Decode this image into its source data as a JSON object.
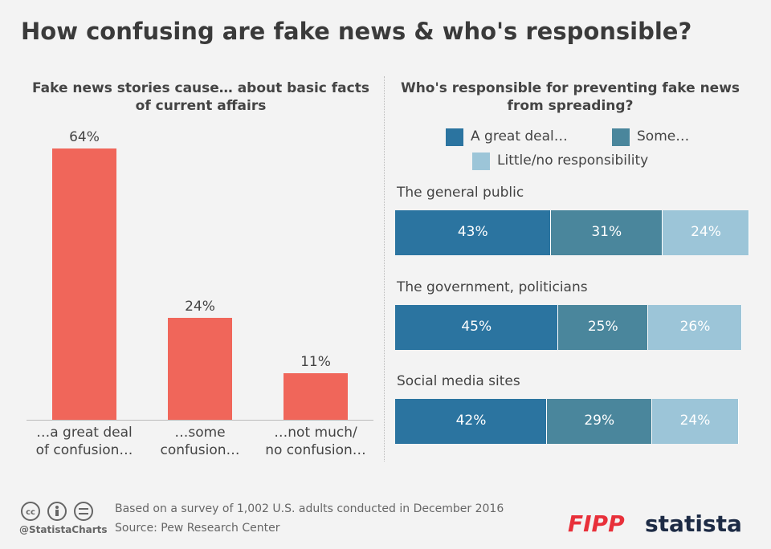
{
  "title": "How confusing are fake news & who's responsible?",
  "chart_data": [
    {
      "type": "bar",
      "title": "Fake news stories cause… about basic facts of current affairs",
      "categories": [
        "…a great deal of confusion…",
        "…some confusion…",
        "…not much/ no confusion…"
      ],
      "values": [
        64,
        24,
        11
      ],
      "value_labels": [
        "64%",
        "24%",
        "11%"
      ],
      "color": "#f0665a"
    },
    {
      "type": "stacked_barh",
      "title": "Who's responsible for preventing fake news from spreading?",
      "categories": [
        "The general public",
        "The government, politicians",
        "Social media sites"
      ],
      "series": [
        {
          "name": "A great deal…",
          "color": "#2b74a0",
          "values": [
            43,
            45,
            42
          ],
          "value_labels": [
            "43%",
            "45%",
            "42%"
          ]
        },
        {
          "name": "Some…",
          "color": "#4a869c",
          "values": [
            31,
            25,
            29
          ],
          "value_labels": [
            "31%",
            "25%",
            "29%"
          ]
        },
        {
          "name": "Little/no responsibility",
          "color": "#9cc5d8",
          "values": [
            24,
            26,
            24
          ],
          "value_labels": [
            "24%",
            "26%",
            "24%"
          ]
        }
      ]
    }
  ],
  "footer": {
    "note": "Based on a survey of 1,002 U.S. adults conducted in December 2016",
    "source": "Source: Pew Research Center",
    "handle": "@StatistaCharts",
    "brands": [
      "FIPP",
      "statista"
    ]
  }
}
